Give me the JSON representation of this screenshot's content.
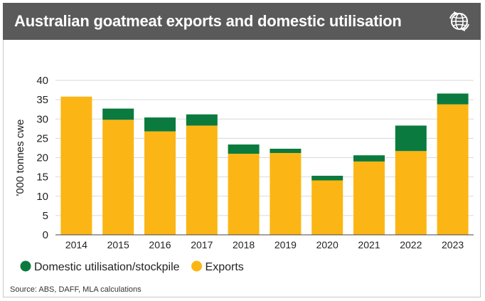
{
  "header": {
    "title": "Australian goatmeat exports and domestic utilisation",
    "icon": "globe-refresh-icon"
  },
  "colors": {
    "header_bg": "#5a5a5a",
    "exports": "#fbb615",
    "domestic": "#0b7a3e",
    "grid": "#d9d9d9"
  },
  "chart_data": {
    "type": "bar",
    "stacked": true,
    "categories": [
      "2014",
      "2015",
      "2016",
      "2017",
      "2018",
      "2019",
      "2020",
      "2021",
      "2022",
      "2023"
    ],
    "series": [
      {
        "name": "Exports",
        "color": "#fbb615",
        "values": [
          35.8,
          29.8,
          26.8,
          28.3,
          21.0,
          21.2,
          14.1,
          19.0,
          21.7,
          33.8
        ]
      },
      {
        "name": "Domestic utilisation/stockpile",
        "color": "#0b7a3e",
        "values": [
          0,
          2.9,
          3.6,
          2.9,
          2.4,
          1.1,
          1.2,
          1.6,
          6.6,
          2.8
        ]
      }
    ],
    "ylabel": "'000 tonnes cwe",
    "xlabel": "",
    "ylim": [
      0,
      40
    ],
    "yticks": [
      0,
      5,
      10,
      15,
      20,
      25,
      30,
      35,
      40
    ],
    "grid": true,
    "legend": [
      {
        "label": "Domestic utilisation/stockpile",
        "color": "#0b7a3e"
      },
      {
        "label": "Exports",
        "color": "#fbb615"
      }
    ],
    "legend_position": "bottom-left"
  },
  "source": "Source: ABS, DAFF, MLA calculations"
}
